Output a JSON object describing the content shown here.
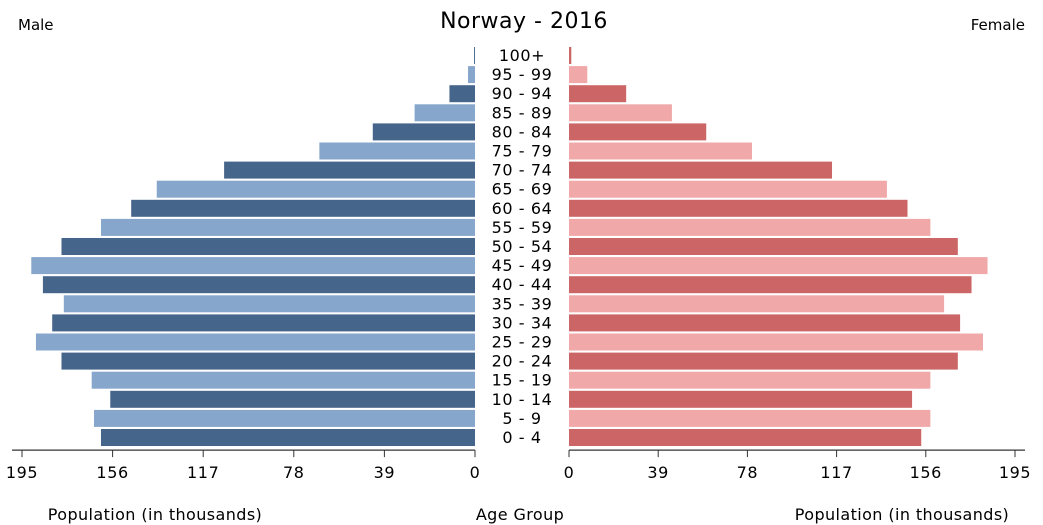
{
  "chart_data": {
    "type": "bar",
    "title": "Norway - 2016",
    "left_label": "Male",
    "right_label": "Female",
    "xlabel_left": "Population (in thousands)",
    "xlabel_center": "Age Group",
    "xlabel_right": "Population (in thousands)",
    "categories": [
      "100+",
      "95 - 99",
      "90 - 94",
      "85 - 89",
      "80 - 84",
      "75 - 79",
      "70 - 74",
      "65 - 69",
      "60 - 64",
      "55 - 59",
      "50 - 54",
      "45 - 49",
      "40 - 44",
      "35 - 39",
      "30 - 34",
      "25 - 29",
      "20 - 24",
      "15 - 19",
      "10 - 14",
      "5 - 9",
      "0 - 4"
    ],
    "series": [
      {
        "name": "Male",
        "values": [
          0.4,
          3,
          11,
          26,
          44,
          67,
          108,
          137,
          148,
          161,
          178,
          191,
          186,
          177,
          182,
          189,
          178,
          165,
          157,
          164,
          161
        ]
      },
      {
        "name": "Female",
        "values": [
          1,
          8,
          25,
          45,
          60,
          80,
          115,
          139,
          148,
          158,
          170,
          183,
          176,
          164,
          171,
          181,
          170,
          158,
          150,
          158,
          154
        ]
      }
    ],
    "xlim": [
      0,
      195
    ],
    "ticks_left": [
      "195",
      "156",
      "117",
      "78",
      "39",
      "0"
    ],
    "ticks_right": [
      "0",
      "39",
      "78",
      "117",
      "156",
      "195"
    ],
    "tick_values": [
      195,
      156,
      117,
      78,
      39,
      0
    ],
    "colors": {
      "male_dark": "#46658a",
      "male_light": "#87a6cb",
      "female_dark": "#cc6666",
      "female_light": "#f0a8a8",
      "axis": "#333333"
    }
  }
}
